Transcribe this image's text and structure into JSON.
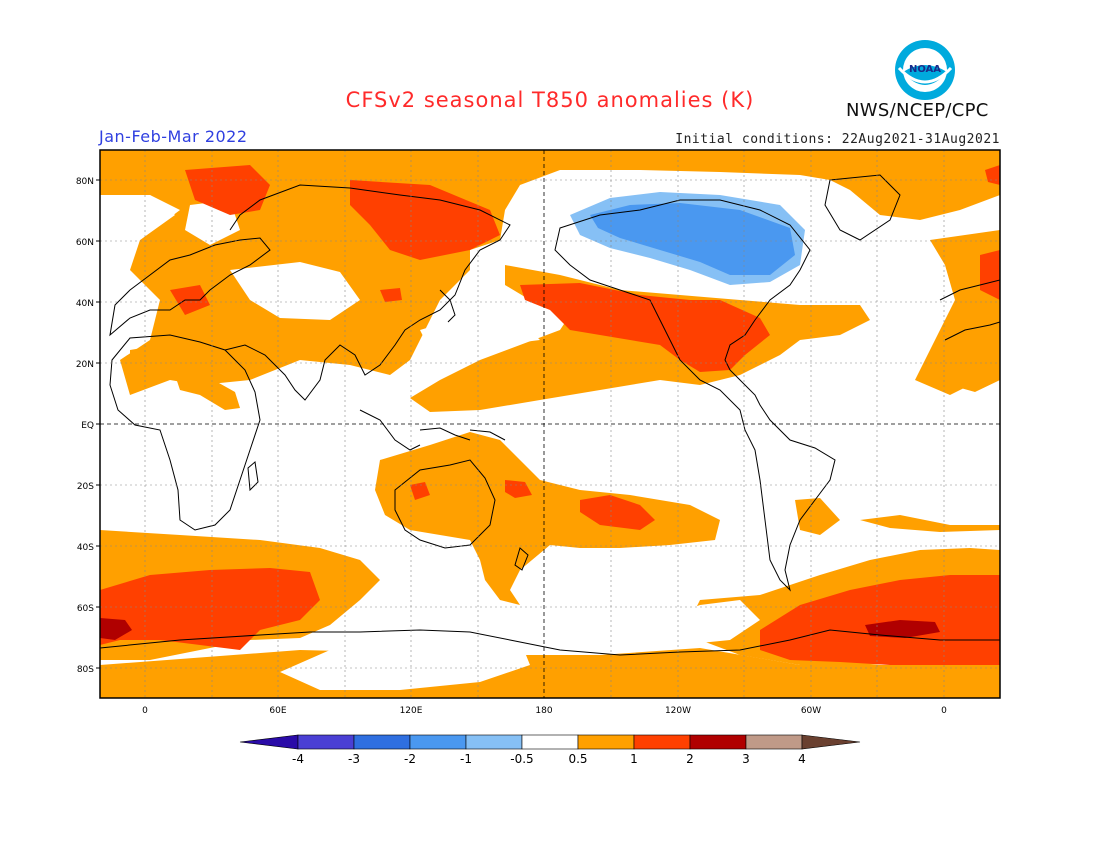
{
  "header": {
    "title": "CFSv2 seasonal T850 anomalies (K)",
    "period": "Jan-Feb-Mar 2022",
    "initial_conditions": "Initial conditions: 22Aug2021-31Aug2021",
    "agency": "NWS/NCEP/CPC",
    "logo_text": "NOAA"
  },
  "axes": {
    "lat_labels": [
      "80N",
      "60N",
      "40N",
      "20N",
      "EQ",
      "20S",
      "40S",
      "60S",
      "80S"
    ],
    "lon_labels": [
      "0",
      "60E",
      "120E",
      "180",
      "120W",
      "60W",
      "0"
    ]
  },
  "colorbar": {
    "colors": [
      "#2a0ba8",
      "#4a3fd4",
      "#2f6fe0",
      "#4a98f0",
      "#86c0f5",
      "#ffffff",
      "#ffa000",
      "#ff4000",
      "#b00000",
      "#c09a88",
      "#6a4030"
    ],
    "labels": [
      "-4",
      "-3",
      "-2",
      "-1",
      "-0.5",
      "0.5",
      "1",
      "2",
      "3",
      "4"
    ]
  },
  "colors": {
    "orange": "#ffa000",
    "red": "#ff4000",
    "darkred": "#b00000",
    "lightblue": "#86c0f5",
    "blue": "#4a98f0",
    "title_red": "#ff2a2a",
    "period_blue": "#2f3fe0"
  }
}
